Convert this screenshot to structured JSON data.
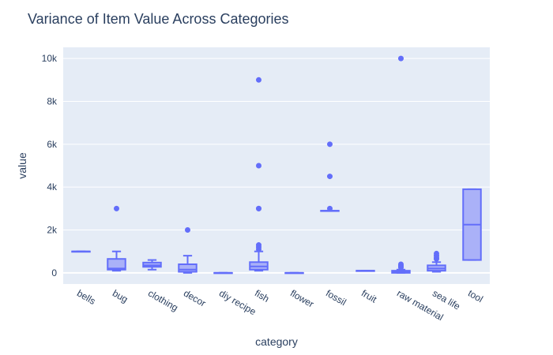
{
  "chart_data": {
    "type": "box",
    "title": "Variance of Item Value Across Categories",
    "xlabel": "category",
    "ylabel": "value",
    "ylim": [
      -520,
      10520
    ],
    "y_ticks": [
      0,
      2000,
      4000,
      6000,
      8000,
      10000
    ],
    "y_tick_labels": [
      "0",
      "2k",
      "4k",
      "6k",
      "8k",
      "10k"
    ],
    "grid": true,
    "colors": {
      "plot_bg": "#E5ECF6",
      "grid": "#ffffff",
      "box_line": "#636EFA",
      "box_fill": "#AAB1F8",
      "text": "#2a3f5f"
    },
    "categories": [
      "bells",
      "bug",
      "clothing",
      "decor",
      "diy recipe",
      "fish",
      "flower",
      "fossil",
      "fruit",
      "raw material",
      "sea life",
      "tool"
    ],
    "boxes": [
      {
        "category": "bells",
        "min": 1000,
        "q1": 1000,
        "median": 1000,
        "q3": 1000,
        "max": 1000,
        "outliers": []
      },
      {
        "category": "bug",
        "min": 100,
        "q1": 150,
        "median": 200,
        "q3": 650,
        "max": 1000,
        "outliers": [
          3000
        ]
      },
      {
        "category": "clothing",
        "min": 150,
        "q1": 280,
        "median": 350,
        "q3": 480,
        "max": 600,
        "outliers": []
      },
      {
        "category": "decor",
        "min": 0,
        "q1": 50,
        "median": 150,
        "q3": 400,
        "max": 800,
        "outliers": [
          2000
        ]
      },
      {
        "category": "diy recipe",
        "min": 0,
        "q1": 0,
        "median": 0,
        "q3": 0,
        "max": 0,
        "outliers": []
      },
      {
        "category": "fish",
        "min": 100,
        "q1": 150,
        "median": 300,
        "q3": 500,
        "max": 1000,
        "outliers": [
          1100,
          1200,
          1300,
          3000,
          3000,
          5000,
          9000
        ]
      },
      {
        "category": "flower",
        "min": 0,
        "q1": 0,
        "median": 0,
        "q3": 0,
        "max": 0,
        "outliers": []
      },
      {
        "category": "fossil",
        "min": 2900,
        "q1": 2900,
        "median": 2900,
        "q3": 2900,
        "max": 2900,
        "outliers": [
          3000,
          4500,
          6000
        ]
      },
      {
        "category": "fruit",
        "min": 100,
        "q1": 100,
        "median": 100,
        "q3": 100,
        "max": 100,
        "outliers": []
      },
      {
        "category": "raw material",
        "min": 0,
        "q1": 0,
        "median": 50,
        "q3": 100,
        "max": 150,
        "outliers": [
          250,
          300,
          350,
          400,
          10000
        ]
      },
      {
        "category": "sea life",
        "min": 50,
        "q1": 100,
        "median": 200,
        "q3": 350,
        "max": 500,
        "outliers": [
          650,
          700,
          800,
          900
        ]
      },
      {
        "category": "tool",
        "min": 600,
        "q1": 600,
        "median": 2250,
        "q3": 3900,
        "max": 3900,
        "outliers": []
      }
    ]
  }
}
